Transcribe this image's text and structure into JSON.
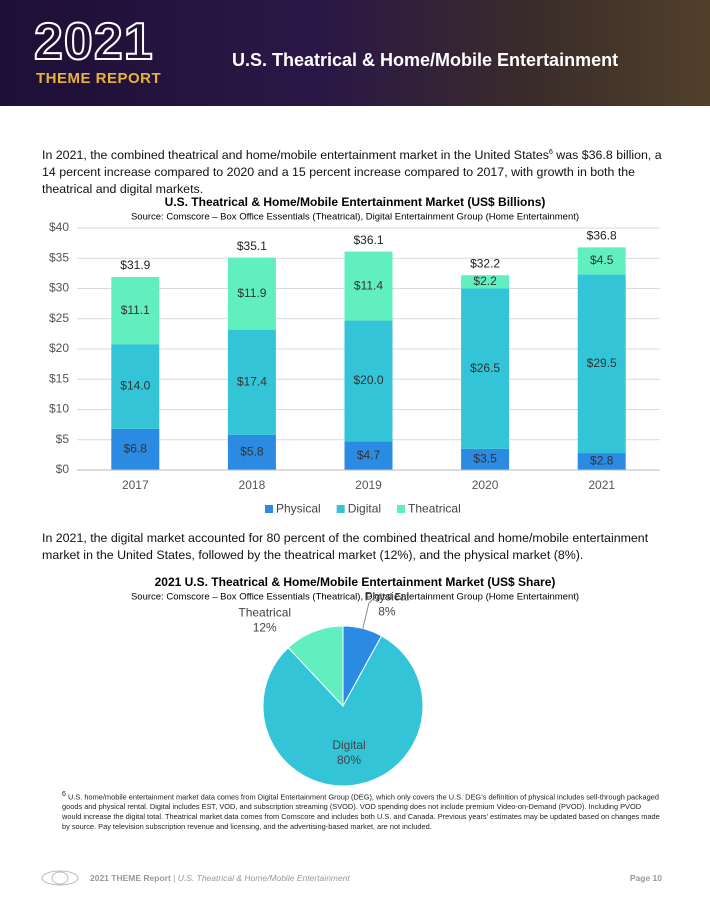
{
  "header": {
    "logo_year": "2021",
    "logo_sub": "THEME REPORT",
    "title": "U.S. Theatrical & Home/Mobile Entertainment"
  },
  "paragraph_1": {
    "text_a": "In 2021, the combined theatrical and home/mobile entertainment market in the United States",
    "sup": "6",
    "text_b": " was $36.8 billion, a 14 percent increase compared to 2020 and a 15 percent increase compared to 2017, with growth in both the theatrical and digital markets."
  },
  "paragraph_2": "In 2021, the digital market accounted for 80 percent of the combined theatrical and home/mobile entertainment market in the United States, followed by the theatrical market (12%), and the physical market (8%).",
  "chart_data": [
    {
      "type": "bar",
      "stacked": true,
      "title": "U.S. Theatrical & Home/Mobile Entertainment Market (US$ Billions)",
      "subtitle": "Source: Comscore – Box Office Essentials (Theatrical), Digital Entertainment Group (Home Entertainment)",
      "categories": [
        "2017",
        "2018",
        "2019",
        "2020",
        "2021"
      ],
      "series": [
        {
          "name": "Physical",
          "color": "#2b8be3",
          "values": [
            6.8,
            5.8,
            4.7,
            3.5,
            2.8
          ],
          "value_labels": [
            "$6.8",
            "$5.8",
            "$4.7",
            "$3.5",
            "$2.8"
          ]
        },
        {
          "name": "Digital",
          "color": "#33c4d7",
          "values": [
            14.0,
            17.4,
            20.0,
            26.5,
            29.5
          ],
          "value_labels": [
            "$14.0",
            "$17.4",
            "$20.0",
            "$26.5",
            "$29.5"
          ]
        },
        {
          "name": "Theatrical",
          "color": "#62efc0",
          "values": [
            11.1,
            11.9,
            11.4,
            2.2,
            4.5
          ],
          "value_labels": [
            "$11.1",
            "$11.9",
            "$11.4",
            "$2.2",
            "$4.5"
          ]
        }
      ],
      "totals": [
        31.9,
        35.1,
        36.1,
        32.2,
        36.8
      ],
      "total_labels": [
        "$31.9",
        "$35.1",
        "$36.1",
        "$32.2",
        "$36.8"
      ],
      "ylim": [
        0,
        40
      ],
      "yticks": [
        {
          "value": 0,
          "label": "$0"
        },
        {
          "value": 5,
          "label": "$5"
        },
        {
          "value": 10,
          "label": "$10"
        },
        {
          "value": 15,
          "label": "$15"
        },
        {
          "value": 20,
          "label": "$20"
        },
        {
          "value": 25,
          "label": "$25"
        },
        {
          "value": 30,
          "label": "$30"
        },
        {
          "value": 35,
          "label": "$35"
        },
        {
          "value": 40,
          "label": "$40"
        }
      ],
      "grid": true,
      "legend": "bottom"
    },
    {
      "type": "pie",
      "title": "2021 U.S. Theatrical & Home/Mobile Entertainment Market (US$ Share)",
      "subtitle": "Source: Comscore – Box Office Essentials (Theatrical), Digital Entertainment Group (Home Entertainment)",
      "categories": [
        "Physical",
        "Digital",
        "Theatrical"
      ],
      "values": [
        8,
        80,
        12
      ],
      "value_labels": [
        "8%",
        "80%",
        "12%"
      ],
      "colors": [
        "#2b8be3",
        "#33c4d7",
        "#62efc0"
      ]
    }
  ],
  "footnote": {
    "sup": "6",
    "text": "U.S. home/mobile entertainment market data comes from Digital Entertainment Group (DEG), which only covers the U.S. DEG’s definition of physical includes sell-through packaged goods and physical rental. Digital includes EST, VOD, and subscription streaming (SVOD). VOD spending does not include premium Video-on-Demand (PVOD). Including PVOD would increase the digital total. Theatrical market data comes from Comscore and includes both U.S. and Canada. Previous years’ estimates may be updated based on changes made by source. Pay television subscription revenue and licensing, and the advertising-based market, are not included."
  },
  "footer": {
    "report": "2021 THEME Report",
    "separator": "|",
    "section": "U.S. Theatrical & Home/Mobile Entertainment",
    "page": "Page 10"
  }
}
